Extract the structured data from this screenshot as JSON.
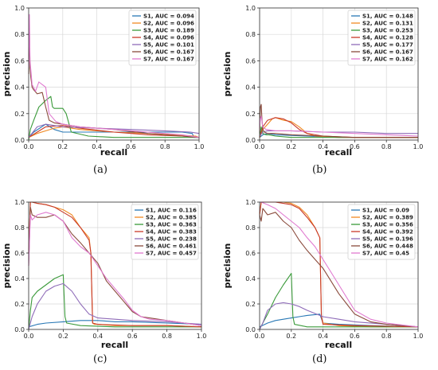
{
  "colors": {
    "S1": "#2878b5",
    "S2": "#f08a24",
    "S3": "#3a9a3a",
    "S4": "#c83a2a",
    "S5": "#8e6bb8",
    "S6": "#8a4a3c",
    "S7": "#e07ad0"
  },
  "chart_data": [
    {
      "type": "line",
      "caption": "(a)",
      "xlabel": "recall",
      "ylabel": "precision",
      "xlim": [
        0,
        1
      ],
      "ylim": [
        0,
        1
      ],
      "grid": true,
      "legend": "top-right",
      "xticks": [
        "0.0",
        "0.2",
        "0.4",
        "0.6",
        "0.8",
        "1.0"
      ],
      "yticks": [
        "0.0",
        "0.2",
        "0.4",
        "0.6",
        "0.8",
        "1.0"
      ],
      "series": [
        {
          "name": "S1, AUC = 0.094",
          "x": [
            0,
            0.03,
            0.1,
            0.15,
            0.2,
            0.3,
            0.5,
            0.7,
            0.9,
            0.96,
            0.97,
            1.0
          ],
          "y": [
            0.02,
            0.06,
            0.12,
            0.08,
            0.06,
            0.06,
            0.06,
            0.06,
            0.06,
            0.05,
            0.02,
            0.02
          ]
        },
        {
          "name": "S2, AUC = 0.096",
          "x": [
            0,
            0.05,
            0.15,
            0.2,
            0.3,
            0.4,
            0.5,
            0.7,
            0.85,
            0.98,
            1.0
          ],
          "y": [
            0.02,
            0.05,
            0.09,
            0.1,
            0.08,
            0.07,
            0.06,
            0.05,
            0.04,
            0.03,
            0.02
          ]
        },
        {
          "name": "S3, AUC = 0.189",
          "x": [
            0,
            0.01,
            0.03,
            0.06,
            0.1,
            0.13,
            0.14,
            0.15,
            0.2,
            0.22,
            0.25,
            0.35,
            0.5,
            0.7,
            0.8,
            0.85,
            1.0
          ],
          "y": [
            0.0,
            0.08,
            0.15,
            0.25,
            0.3,
            0.33,
            0.25,
            0.24,
            0.24,
            0.2,
            0.06,
            0.03,
            0.02,
            0.02,
            0.02,
            0.02,
            0.02
          ]
        },
        {
          "name": "S4, AUC = 0.096",
          "x": [
            0,
            0.05,
            0.1,
            0.2,
            0.3,
            0.5,
            0.7,
            0.9,
            1.0
          ],
          "y": [
            0.02,
            0.06,
            0.1,
            0.11,
            0.09,
            0.06,
            0.04,
            0.03,
            0.02
          ]
        },
        {
          "name": "S5, AUC = 0.101",
          "x": [
            0,
            0.05,
            0.1,
            0.2,
            0.4,
            0.6,
            0.8,
            0.95,
            1.0
          ],
          "y": [
            0.02,
            0.1,
            0.12,
            0.1,
            0.09,
            0.08,
            0.07,
            0.06,
            0.05
          ]
        },
        {
          "name": "S6, AUC = 0.167",
          "x": [
            0,
            0.004,
            0.008,
            0.012,
            0.02,
            0.03,
            0.05,
            0.08,
            0.1,
            0.12,
            0.15,
            0.2,
            0.3,
            0.5,
            0.7,
            0.9,
            1.0
          ],
          "y": [
            0.5,
            0.85,
            0.55,
            0.48,
            0.4,
            0.38,
            0.35,
            0.36,
            0.25,
            0.15,
            0.13,
            0.12,
            0.1,
            0.08,
            0.05,
            0.03,
            0.02
          ]
        },
        {
          "name": "S7, AUC = 0.167",
          "x": [
            0,
            0.004,
            0.008,
            0.02,
            0.04,
            0.06,
            0.08,
            0.1,
            0.12,
            0.16,
            0.2,
            0.3,
            0.5,
            0.7,
            0.9,
            1.0
          ],
          "y": [
            0.55,
            0.95,
            0.6,
            0.42,
            0.37,
            0.44,
            0.42,
            0.4,
            0.2,
            0.14,
            0.12,
            0.1,
            0.08,
            0.06,
            0.04,
            0.02
          ]
        }
      ]
    },
    {
      "type": "line",
      "caption": "(b)",
      "xlabel": "recall",
      "ylabel": "precision",
      "xlim": [
        0,
        1
      ],
      "ylim": [
        0,
        1
      ],
      "grid": true,
      "legend": "top-right",
      "xticks": [
        "0.0",
        "0.2",
        "0.4",
        "0.6",
        "0.8",
        "1.0"
      ],
      "yticks": [
        "0.0",
        "0.2",
        "0.4",
        "0.6",
        "0.8",
        "1.0"
      ],
      "series": [
        {
          "name": "S1, AUC = 0.148",
          "x": [
            0,
            0.02,
            0.05,
            0.1,
            0.3,
            0.5,
            0.7,
            0.9,
            1.0
          ],
          "y": [
            0.02,
            0.04,
            0.05,
            0.04,
            0.03,
            0.02,
            0.02,
            0.02,
            0.02
          ]
        },
        {
          "name": "S2, AUC = 0.131",
          "x": [
            0,
            0.02,
            0.05,
            0.08,
            0.1,
            0.15,
            0.2,
            0.25,
            0.3,
            0.35,
            0.5,
            0.7,
            1.0
          ],
          "y": [
            0.02,
            0.08,
            0.12,
            0.16,
            0.17,
            0.15,
            0.14,
            0.1,
            0.05,
            0.03,
            0.02,
            0.02,
            0.02
          ]
        },
        {
          "name": "S3, AUC = 0.253",
          "x": [
            0,
            0.01,
            0.02,
            0.04,
            0.06,
            0.1,
            0.2,
            0.4,
            0.6,
            0.8,
            1.0
          ],
          "y": [
            0.02,
            0.1,
            0.05,
            0.04,
            0.04,
            0.03,
            0.02,
            0.02,
            0.02,
            0.02,
            0.02
          ]
        },
        {
          "name": "S4, AUC = 0.128",
          "x": [
            0,
            0.02,
            0.05,
            0.1,
            0.15,
            0.2,
            0.25,
            0.3,
            0.4,
            0.6,
            0.8,
            1.0
          ],
          "y": [
            0.02,
            0.1,
            0.15,
            0.17,
            0.16,
            0.13,
            0.08,
            0.05,
            0.03,
            0.02,
            0.02,
            0.02
          ]
        },
        {
          "name": "S5, AUC = 0.177",
          "x": [
            0,
            0.02,
            0.05,
            0.1,
            0.2,
            0.4,
            0.6,
            0.8,
            1.0
          ],
          "y": [
            0.03,
            0.06,
            0.07,
            0.07,
            0.07,
            0.06,
            0.06,
            0.05,
            0.05
          ]
        },
        {
          "name": "S6, AUC = 0.167",
          "x": [
            0,
            0.005,
            0.01,
            0.015,
            0.02,
            0.03,
            0.05,
            0.1,
            0.2,
            0.4,
            0.6,
            0.8,
            1.0
          ],
          "y": [
            0.05,
            0.25,
            0.27,
            0.15,
            0.08,
            0.06,
            0.05,
            0.05,
            0.04,
            0.03,
            0.02,
            0.02,
            0.02
          ]
        },
        {
          "name": "S7, AUC = 0.162",
          "x": [
            0,
            0.005,
            0.01,
            0.02,
            0.04,
            0.1,
            0.2,
            0.4,
            0.6,
            0.8,
            1.0
          ],
          "y": [
            0.1,
            0.16,
            0.18,
            0.1,
            0.08,
            0.07,
            0.07,
            0.06,
            0.05,
            0.04,
            0.03
          ]
        }
      ]
    },
    {
      "type": "line",
      "caption": "(c)",
      "xlabel": "recall",
      "ylabel": "precision",
      "xlim": [
        0,
        1
      ],
      "ylim": [
        0,
        1
      ],
      "grid": true,
      "legend": "top-right",
      "xticks": [
        "0.0",
        "0.2",
        "0.4",
        "0.6",
        "0.8",
        "1.0"
      ],
      "yticks": [
        "0.0",
        "0.2",
        "0.4",
        "0.6",
        "0.8",
        "1.0"
      ],
      "series": [
        {
          "name": "S1, AUC = 0.116",
          "x": [
            0,
            0.05,
            0.1,
            0.2,
            0.3,
            0.4,
            0.5,
            0.6,
            0.8,
            1.0
          ],
          "y": [
            0.02,
            0.04,
            0.05,
            0.06,
            0.07,
            0.07,
            0.06,
            0.06,
            0.05,
            0.04
          ]
        },
        {
          "name": "S2, AUC = 0.385",
          "x": [
            0,
            0.01,
            0.02,
            0.05,
            0.1,
            0.15,
            0.2,
            0.25,
            0.3,
            0.35,
            0.36,
            0.37,
            0.38,
            0.4,
            0.5,
            0.6,
            0.8,
            1.0
          ],
          "y": [
            0.6,
            1.0,
            1.0,
            0.99,
            0.98,
            0.96,
            0.94,
            0.9,
            0.8,
            0.72,
            0.6,
            0.05,
            0.04,
            0.04,
            0.03,
            0.03,
            0.03,
            0.02
          ]
        },
        {
          "name": "S3, AUC = 0.363",
          "x": [
            0,
            0.01,
            0.02,
            0.05,
            0.1,
            0.15,
            0.2,
            0.21,
            0.22,
            0.3,
            0.5,
            0.7,
            1.0
          ],
          "y": [
            0.0,
            0.15,
            0.25,
            0.3,
            0.35,
            0.4,
            0.43,
            0.1,
            0.05,
            0.03,
            0.02,
            0.02,
            0.02
          ]
        },
        {
          "name": "S4, AUC = 0.383",
          "x": [
            0,
            0.01,
            0.02,
            0.05,
            0.1,
            0.15,
            0.2,
            0.25,
            0.3,
            0.35,
            0.36,
            0.37,
            0.4,
            0.6,
            0.8,
            1.0
          ],
          "y": [
            0.6,
            1.0,
            1.0,
            0.99,
            0.98,
            0.96,
            0.92,
            0.88,
            0.8,
            0.7,
            0.6,
            0.05,
            0.04,
            0.03,
            0.03,
            0.02
          ]
        },
        {
          "name": "S5, AUC = 0.238",
          "x": [
            0,
            0.02,
            0.05,
            0.1,
            0.15,
            0.2,
            0.25,
            0.3,
            0.35,
            0.4,
            0.5,
            0.6,
            0.8,
            0.9,
            1.0
          ],
          "y": [
            0.0,
            0.1,
            0.2,
            0.3,
            0.34,
            0.36,
            0.3,
            0.2,
            0.12,
            0.09,
            0.08,
            0.07,
            0.06,
            0.05,
            0.04
          ]
        },
        {
          "name": "S6, AUC = 0.461",
          "x": [
            0,
            0.01,
            0.02,
            0.05,
            0.1,
            0.15,
            0.2,
            0.25,
            0.3,
            0.35,
            0.4,
            0.45,
            0.5,
            0.55,
            0.6,
            0.65,
            0.7,
            0.8,
            0.9,
            1.0
          ],
          "y": [
            0.5,
            0.96,
            0.9,
            0.88,
            0.88,
            0.9,
            0.85,
            0.75,
            0.68,
            0.6,
            0.52,
            0.38,
            0.3,
            0.22,
            0.14,
            0.1,
            0.09,
            0.07,
            0.05,
            0.03
          ]
        },
        {
          "name": "S7, AUC = 0.457",
          "x": [
            0,
            0.01,
            0.02,
            0.05,
            0.1,
            0.15,
            0.2,
            0.25,
            0.3,
            0.35,
            0.4,
            0.45,
            0.5,
            0.55,
            0.6,
            0.65,
            0.7,
            0.8,
            0.9,
            1.0
          ],
          "y": [
            0.5,
            0.9,
            0.86,
            0.9,
            0.92,
            0.9,
            0.85,
            0.72,
            0.65,
            0.6,
            0.5,
            0.4,
            0.32,
            0.24,
            0.15,
            0.1,
            0.08,
            0.07,
            0.05,
            0.03
          ]
        }
      ]
    },
    {
      "type": "line",
      "caption": "(d)",
      "xlabel": "recall",
      "ylabel": "precision",
      "xlim": [
        0,
        1
      ],
      "ylim": [
        0,
        1
      ],
      "grid": true,
      "legend": "top-right",
      "xticks": [
        "0.0",
        "0.2",
        "0.4",
        "0.6",
        "0.8",
        "1.0"
      ],
      "yticks": [
        "0.0",
        "0.2",
        "0.4",
        "0.6",
        "0.8",
        "1.0"
      ],
      "series": [
        {
          "name": "S1, AUC = 0.09",
          "x": [
            0,
            0.05,
            0.1,
            0.2,
            0.3,
            0.38,
            0.4,
            0.5,
            0.7,
            1.0
          ],
          "y": [
            0.02,
            0.05,
            0.07,
            0.09,
            0.11,
            0.12,
            0.05,
            0.04,
            0.03,
            0.02
          ]
        },
        {
          "name": "S2, AUC = 0.389",
          "x": [
            0,
            0.01,
            0.05,
            0.1,
            0.15,
            0.2,
            0.25,
            0.3,
            0.35,
            0.38,
            0.39,
            0.4,
            0.5,
            0.7,
            1.0
          ],
          "y": [
            0.9,
            1.0,
            1.0,
            1.0,
            1.0,
            0.99,
            0.96,
            0.9,
            0.8,
            0.72,
            0.1,
            0.05,
            0.03,
            0.02,
            0.02
          ]
        },
        {
          "name": "S3, AUC = 0.356",
          "x": [
            0,
            0.02,
            0.05,
            0.1,
            0.15,
            0.2,
            0.21,
            0.22,
            0.3,
            0.5,
            1.0
          ],
          "y": [
            0.0,
            0.05,
            0.12,
            0.25,
            0.35,
            0.44,
            0.1,
            0.04,
            0.02,
            0.02,
            0.02
          ]
        },
        {
          "name": "S4, AUC = 0.392",
          "x": [
            0,
            0.01,
            0.05,
            0.1,
            0.15,
            0.2,
            0.25,
            0.3,
            0.35,
            0.38,
            0.39,
            0.4,
            0.6,
            1.0
          ],
          "y": [
            0.9,
            1.0,
            1.0,
            1.0,
            0.99,
            0.98,
            0.95,
            0.88,
            0.8,
            0.72,
            0.1,
            0.04,
            0.03,
            0.02
          ]
        },
        {
          "name": "S5, AUC = 0.196",
          "x": [
            0,
            0.02,
            0.05,
            0.1,
            0.15,
            0.2,
            0.25,
            0.3,
            0.4,
            0.5,
            0.6,
            0.8,
            1.0
          ],
          "y": [
            0.0,
            0.05,
            0.15,
            0.2,
            0.21,
            0.2,
            0.18,
            0.15,
            0.1,
            0.08,
            0.06,
            0.04,
            0.02
          ]
        },
        {
          "name": "S6, AUC = 0.448",
          "x": [
            0,
            0.01,
            0.02,
            0.05,
            0.1,
            0.15,
            0.2,
            0.25,
            0.3,
            0.35,
            0.4,
            0.45,
            0.5,
            0.55,
            0.6,
            0.7,
            0.8,
            1.0
          ],
          "y": [
            0.9,
            0.85,
            0.95,
            0.9,
            0.92,
            0.85,
            0.8,
            0.7,
            0.62,
            0.55,
            0.48,
            0.38,
            0.28,
            0.2,
            0.12,
            0.06,
            0.04,
            0.02
          ]
        },
        {
          "name": "S7, AUC = 0.45",
          "x": [
            0,
            0.01,
            0.05,
            0.1,
            0.15,
            0.2,
            0.25,
            0.3,
            0.35,
            0.4,
            0.45,
            0.5,
            0.55,
            0.6,
            0.7,
            0.8,
            1.0
          ],
          "y": [
            1.0,
            1.0,
            0.98,
            0.95,
            0.9,
            0.85,
            0.8,
            0.72,
            0.65,
            0.55,
            0.45,
            0.35,
            0.25,
            0.15,
            0.08,
            0.05,
            0.02
          ]
        }
      ]
    }
  ]
}
